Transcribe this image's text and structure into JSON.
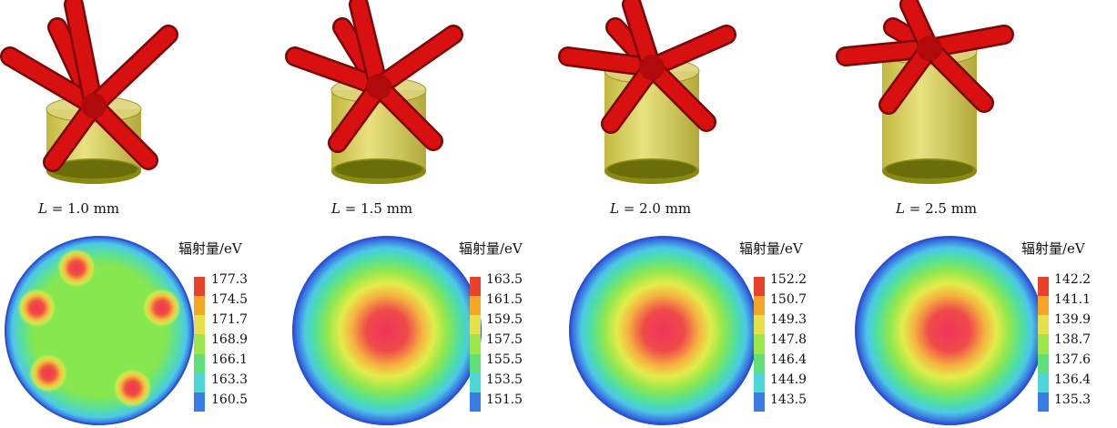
{
  "colors": {
    "cylinder": "#c9be2e",
    "cylinder_dark": "#8a8a13",
    "tube": "#d81010",
    "tube_dark": "#7a0808",
    "colorbar": [
      "#e8432a",
      "#f5a623",
      "#e6e14a",
      "#9be84a",
      "#5fe07a",
      "#4fd6d6",
      "#3a7be6",
      "#1e3fe8"
    ]
  },
  "panels": [
    {
      "caption_var": "L",
      "caption_value": " = 1.0 mm",
      "colorbar_title": "辐射量/eV",
      "ticks": [
        "177.3",
        "174.5",
        "171.7",
        "168.9",
        "166.1",
        "163.3",
        "160.5"
      ],
      "cylinder_height": 0.58,
      "hotspots": 5
    },
    {
      "caption_var": "L",
      "caption_value": " = 1.5 mm",
      "colorbar_title": "辐射量/eV",
      "ticks": [
        "163.5",
        "161.5",
        "159.5",
        "157.5",
        "155.5",
        "153.5",
        "151.5"
      ],
      "cylinder_height": 0.72,
      "hotspots": 0
    },
    {
      "caption_var": "L",
      "caption_value": " = 2.0 mm",
      "colorbar_title": "辐射量/eV",
      "ticks": [
        "152.2",
        "150.7",
        "149.3",
        "147.8",
        "146.4",
        "144.9",
        "143.5"
      ],
      "cylinder_height": 0.86,
      "hotspots": 0
    },
    {
      "caption_var": "L",
      "caption_value": " = 2.5 mm",
      "colorbar_title": "辐射量/eV",
      "ticks": [
        "142.2",
        "141.1",
        "139.9",
        "138.7",
        "137.6",
        "136.4",
        "135.3"
      ],
      "cylinder_height": 1.0,
      "hotspots": 0
    }
  ]
}
